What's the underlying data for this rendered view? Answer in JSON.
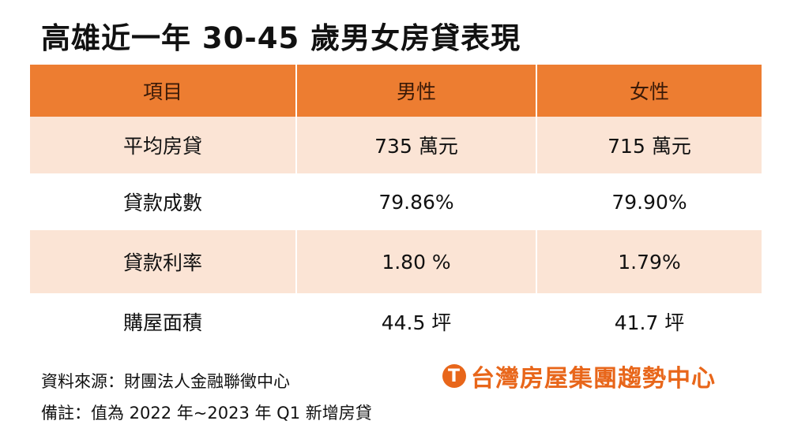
{
  "title": "高雄近一年 30-45 歲男女房貸表現",
  "table": {
    "headers": [
      "項目",
      "男性",
      "女性"
    ],
    "rows": [
      [
        "平均房貸",
        "735 萬元",
        "715 萬元"
      ],
      [
        "貸款成數",
        "79.86%",
        "79.90%"
      ],
      [
        "貸款利率",
        "1.80 %",
        "1.79%"
      ],
      [
        "購屋面積",
        "44.5 坪",
        "41.7 坪"
      ]
    ]
  },
  "source": "資料來源：財團法人金融聯徵中心",
  "note": "備註：值為 2022 年~2023 年 Q1 新增房貸",
  "logo": {
    "text": "台灣房屋集團趨勢中心",
    "icon": "T"
  },
  "colors": {
    "header": "#ED7D31",
    "stripe": "#FBE4D5",
    "logo": "#E8661A"
  }
}
